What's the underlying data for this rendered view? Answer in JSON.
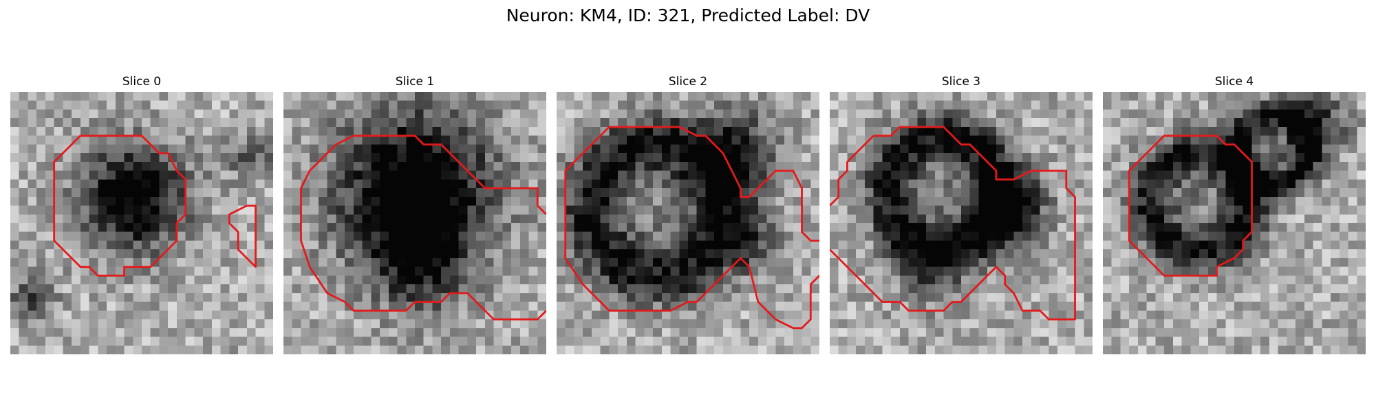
{
  "figure": {
    "title": "Neuron: KM4, ID: 321, Predicted Label: DV"
  },
  "panels": [
    {
      "title": "Slice 0"
    },
    {
      "title": "Slice 1"
    },
    {
      "title": "Slice 2"
    },
    {
      "title": "Slice 3"
    },
    {
      "title": "Slice 4"
    }
  ],
  "colors": {
    "contour": "#e31a1c",
    "background": "#ffffff"
  }
}
